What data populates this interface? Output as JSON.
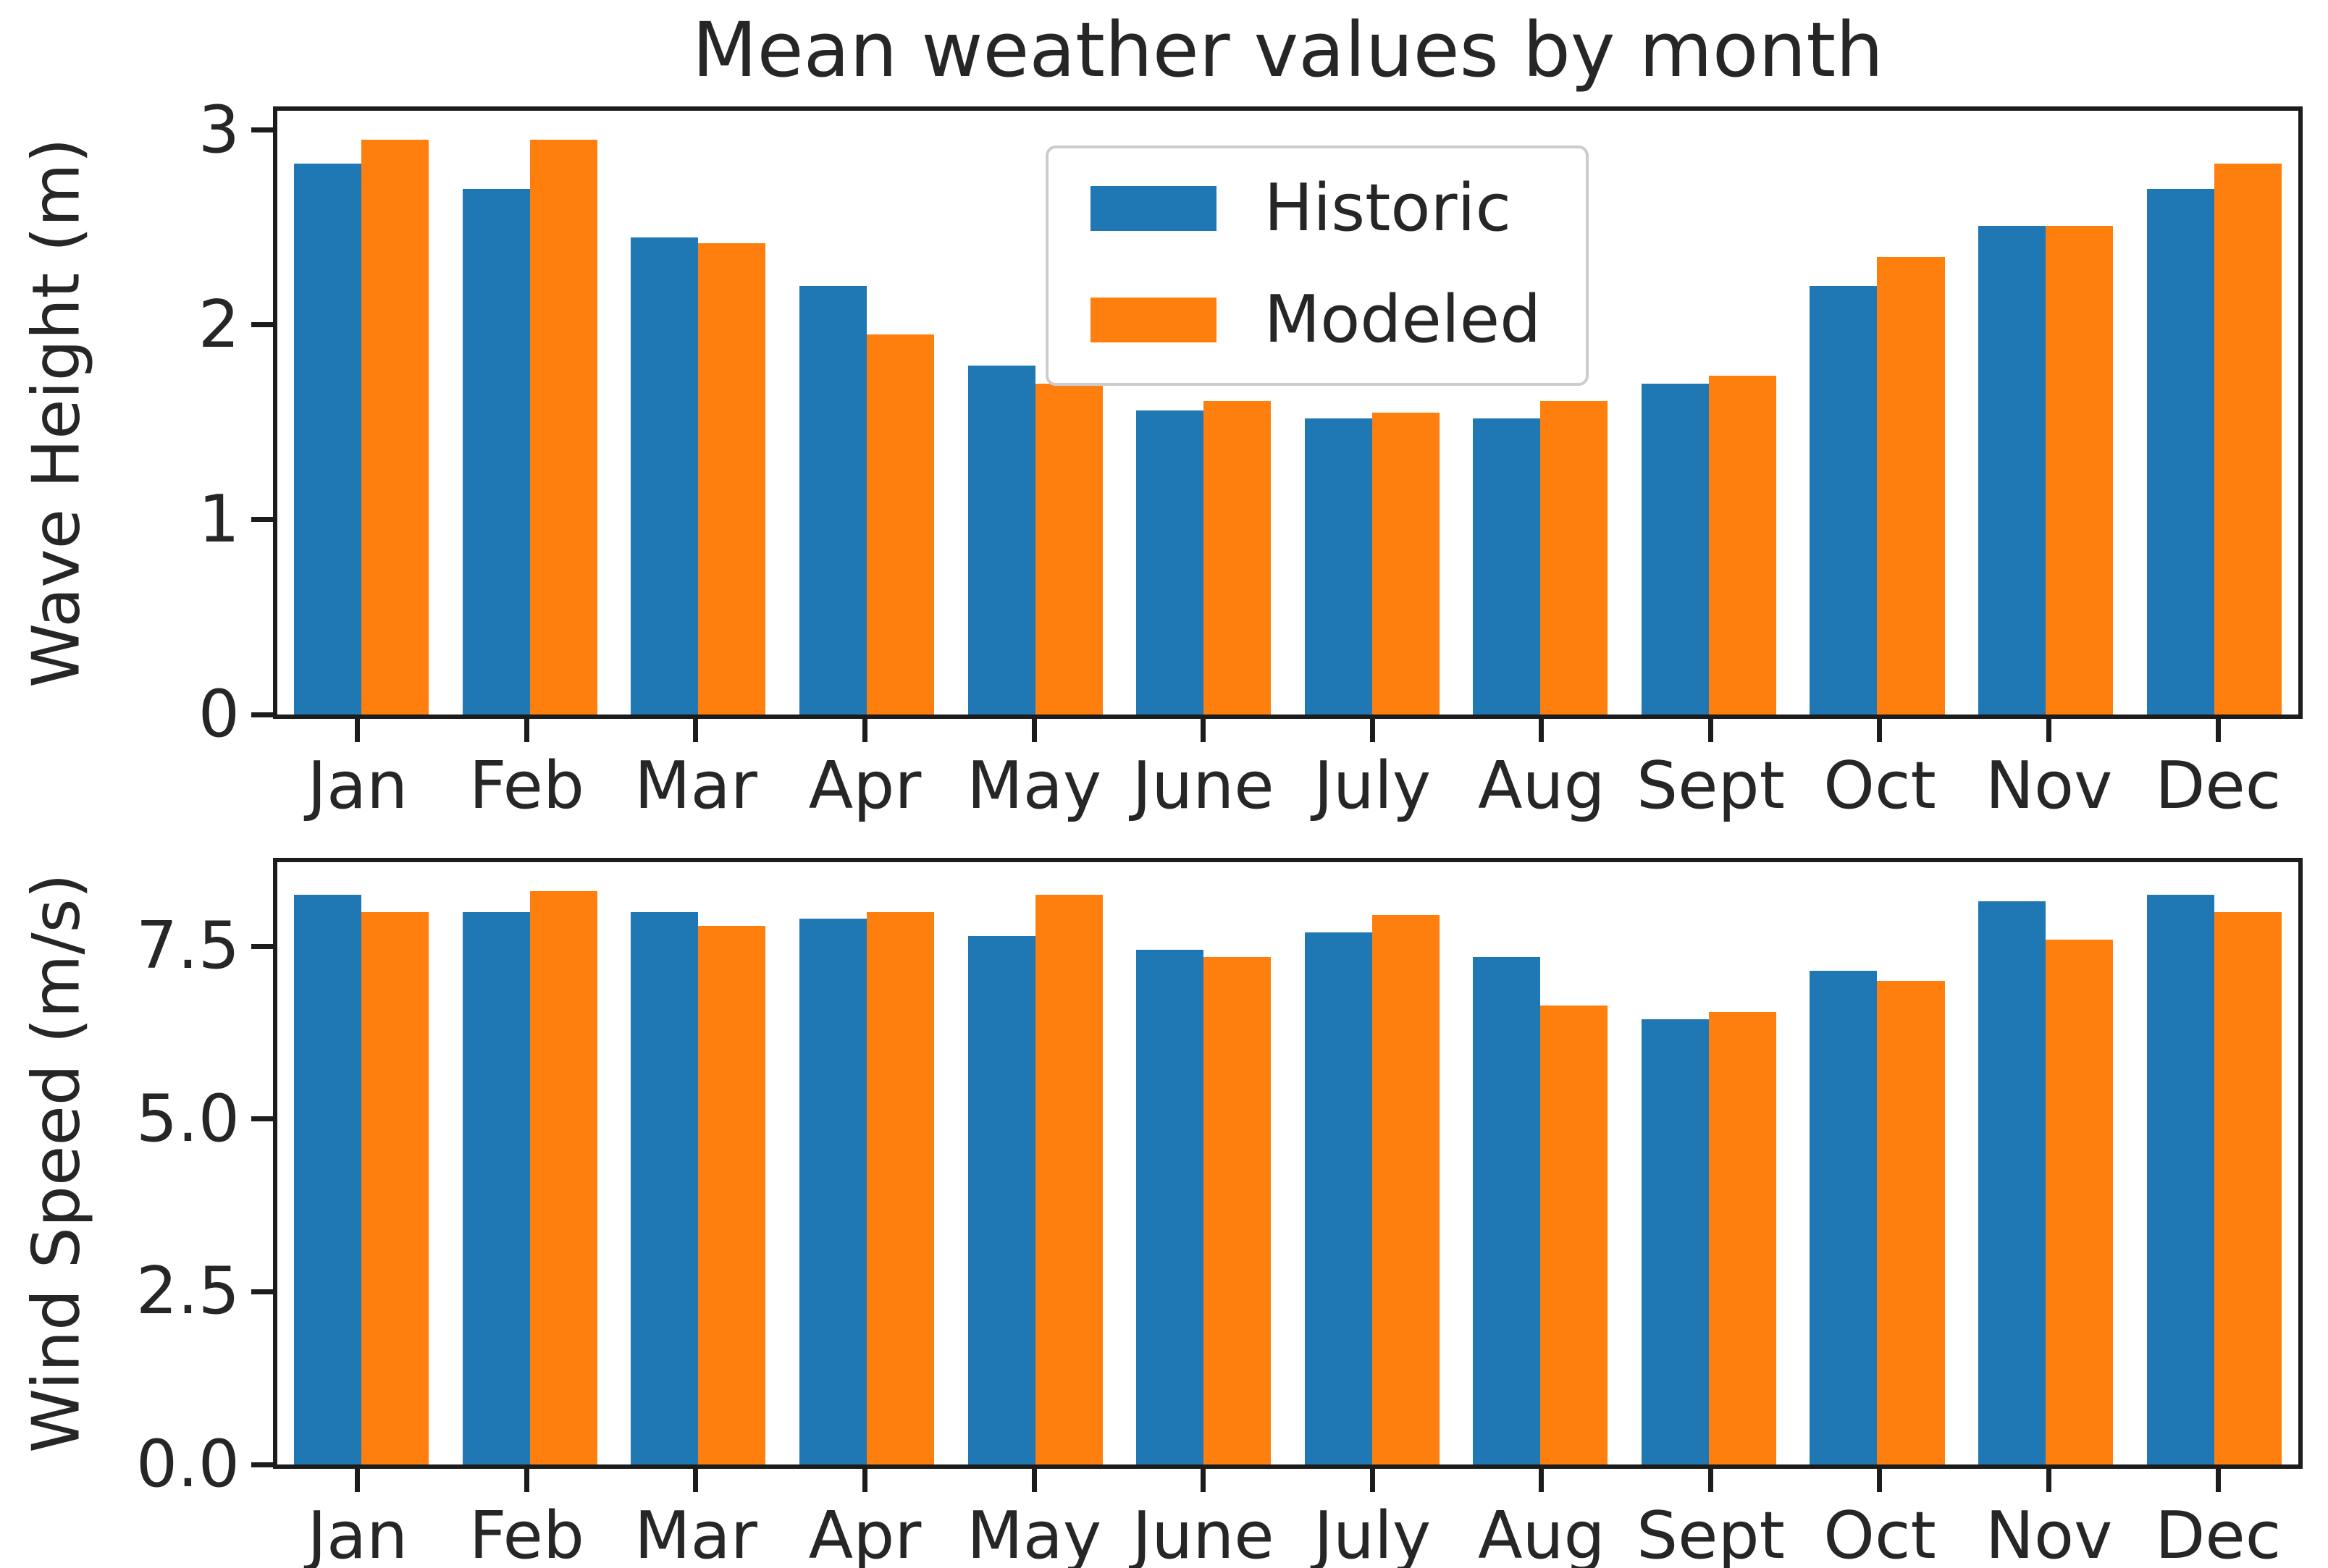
{
  "figure": {
    "title": "Mean weather values by month"
  },
  "legend": {
    "position": "upper center",
    "entries": [
      {
        "label": "Historic",
        "color": "#1f77b4"
      },
      {
        "label": "Modeled",
        "color": "#ff7f0e"
      }
    ]
  },
  "chart_data": [
    {
      "type": "bar",
      "title": "Mean weather values by month",
      "ylabel": "Wave Height (m)",
      "xlabel": "",
      "grid": false,
      "legend_position": "upper center",
      "categories": [
        "Jan",
        "Feb",
        "Mar",
        "Apr",
        "May",
        "June",
        "July",
        "Aug",
        "Sept",
        "Oct",
        "Nov",
        "Dec"
      ],
      "series": [
        {
          "name": "Historic",
          "color": "#1f77b4",
          "values": [
            2.83,
            2.7,
            2.45,
            2.2,
            1.79,
            1.56,
            1.52,
            1.52,
            1.7,
            2.2,
            2.51,
            2.7
          ]
        },
        {
          "name": "Modeled",
          "color": "#ff7f0e",
          "values": [
            2.95,
            2.95,
            2.42,
            1.95,
            1.7,
            1.61,
            1.55,
            1.61,
            1.74,
            2.35,
            2.51,
            2.83
          ]
        }
      ],
      "ylim": [
        0,
        3.1
      ],
      "yticks": [
        0,
        1,
        2,
        3
      ],
      "ytick_labels": [
        "0",
        "1",
        "2",
        "3"
      ]
    },
    {
      "type": "bar",
      "ylabel": "Wind Speed (m/s)",
      "xlabel": "",
      "grid": false,
      "categories": [
        "Jan",
        "Feb",
        "Mar",
        "Apr",
        "May",
        "June",
        "July",
        "Aug",
        "Sept",
        "Oct",
        "Nov",
        "Dec"
      ],
      "series": [
        {
          "name": "Historic",
          "color": "#1f77b4",
          "values": [
            8.25,
            8.0,
            8.0,
            7.9,
            7.65,
            7.45,
            7.7,
            7.35,
            6.45,
            7.15,
            8.15,
            8.25
          ]
        },
        {
          "name": "Modeled",
          "color": "#ff7f0e",
          "values": [
            8.0,
            8.3,
            7.8,
            8.0,
            8.25,
            7.35,
            7.95,
            6.65,
            6.55,
            7.0,
            7.6,
            8.0
          ]
        }
      ],
      "ylim": [
        0,
        8.72
      ],
      "yticks": [
        0,
        2.5,
        5,
        7.5
      ],
      "ytick_labels": [
        "0.0",
        "2.5",
        "5.0",
        "7.5"
      ]
    }
  ]
}
